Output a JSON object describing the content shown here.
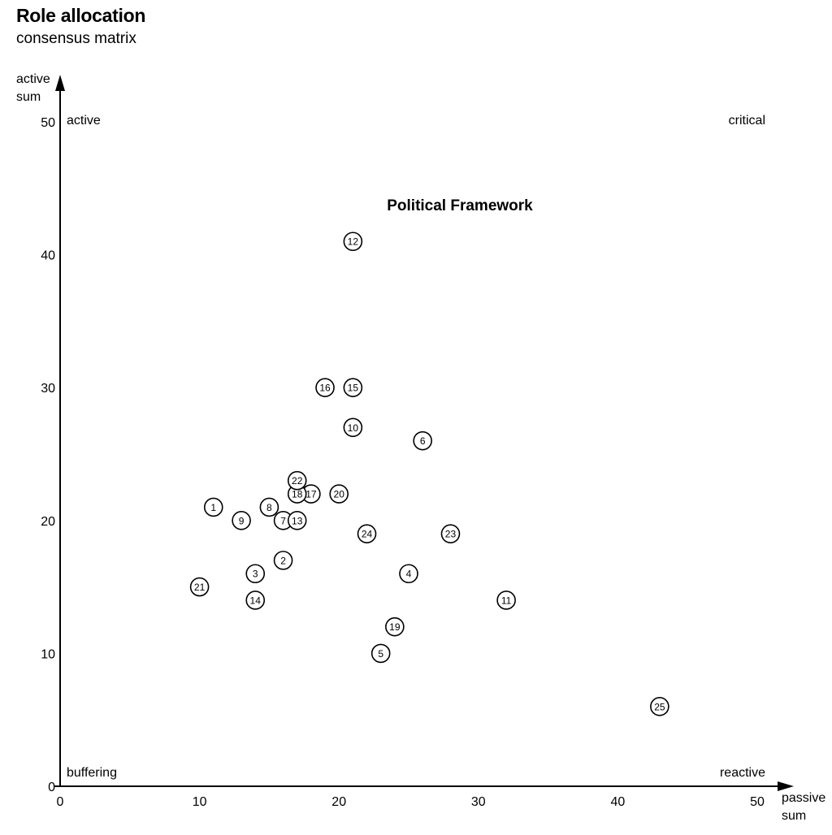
{
  "header": {
    "title": "Role allocation",
    "subtitle": "consensus matrix"
  },
  "chart_data": {
    "type": "scatter",
    "title": "Political Framework",
    "xlabel": [
      "passive",
      "sum"
    ],
    "ylabel": [
      "active",
      "sum"
    ],
    "xlim": [
      0,
      50
    ],
    "ylim": [
      0,
      50
    ],
    "xticks": [
      "0",
      "10",
      "20",
      "30",
      "40",
      "50"
    ],
    "yticks": [
      "0",
      "10",
      "20",
      "30",
      "40",
      "50"
    ],
    "grid": false,
    "quadrants": {
      "top_left": "active",
      "top_right": "critical",
      "bottom_left": "buffering",
      "bottom_right": "reactive"
    },
    "points": [
      {
        "label": "1",
        "x": 11,
        "y": 21
      },
      {
        "label": "2",
        "x": 16,
        "y": 17
      },
      {
        "label": "3",
        "x": 14,
        "y": 16
      },
      {
        "label": "4",
        "x": 25,
        "y": 16
      },
      {
        "label": "5",
        "x": 23,
        "y": 10
      },
      {
        "label": "6",
        "x": 26,
        "y": 26
      },
      {
        "label": "7",
        "x": 16,
        "y": 20
      },
      {
        "label": "8",
        "x": 15,
        "y": 21
      },
      {
        "label": "9",
        "x": 13,
        "y": 20
      },
      {
        "label": "10",
        "x": 21,
        "y": 27
      },
      {
        "label": "11",
        "x": 32,
        "y": 14
      },
      {
        "label": "12",
        "x": 21,
        "y": 41
      },
      {
        "label": "13",
        "x": 17,
        "y": 20
      },
      {
        "label": "14",
        "x": 14,
        "y": 14
      },
      {
        "label": "15",
        "x": 21,
        "y": 30
      },
      {
        "label": "16",
        "x": 19,
        "y": 30
      },
      {
        "label": "17",
        "x": 18,
        "y": 22
      },
      {
        "label": "18",
        "x": 17,
        "y": 22
      },
      {
        "label": "19",
        "x": 24,
        "y": 12
      },
      {
        "label": "20",
        "x": 20,
        "y": 22
      },
      {
        "label": "21",
        "x": 10,
        "y": 15
      },
      {
        "label": "22",
        "x": 17,
        "y": 23
      },
      {
        "label": "23",
        "x": 28,
        "y": 19
      },
      {
        "label": "24",
        "x": 22,
        "y": 19
      },
      {
        "label": "25",
        "x": 43,
        "y": 6
      }
    ]
  }
}
